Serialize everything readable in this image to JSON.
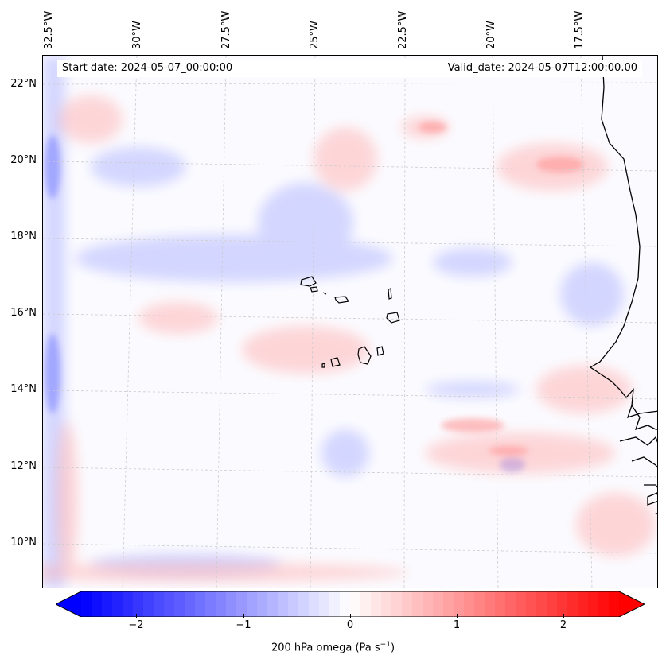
{
  "header": {
    "start_label": "Start date: 2024-05-07_00:00:00",
    "valid_label": "Valid_date: 2024-05-07T12:00:00.00"
  },
  "axes": {
    "lat_labels": [
      "22°N",
      "20°N",
      "18°N",
      "16°N",
      "14°N",
      "12°N",
      "10°N"
    ],
    "lon_labels": [
      "32.5°W",
      "30°W",
      "27.5°W",
      "25°W",
      "22.5°W",
      "20°W",
      "17.5°W"
    ]
  },
  "colorbar": {
    "ticks": [
      "−2",
      "−1",
      "0",
      "1",
      "2"
    ],
    "label_main": "200 hPa omega (Pa s",
    "label_exp": "−1",
    "label_end": ")",
    "vmin": -2.6,
    "vmax": 2.6,
    "levels": 52,
    "neg_color": "#0000ff",
    "pos_color": "#ff0000"
  },
  "map": {
    "field_variable": "200 hPa omega",
    "coastline_color": "#000000",
    "gridline_color": "#cccccc"
  }
}
